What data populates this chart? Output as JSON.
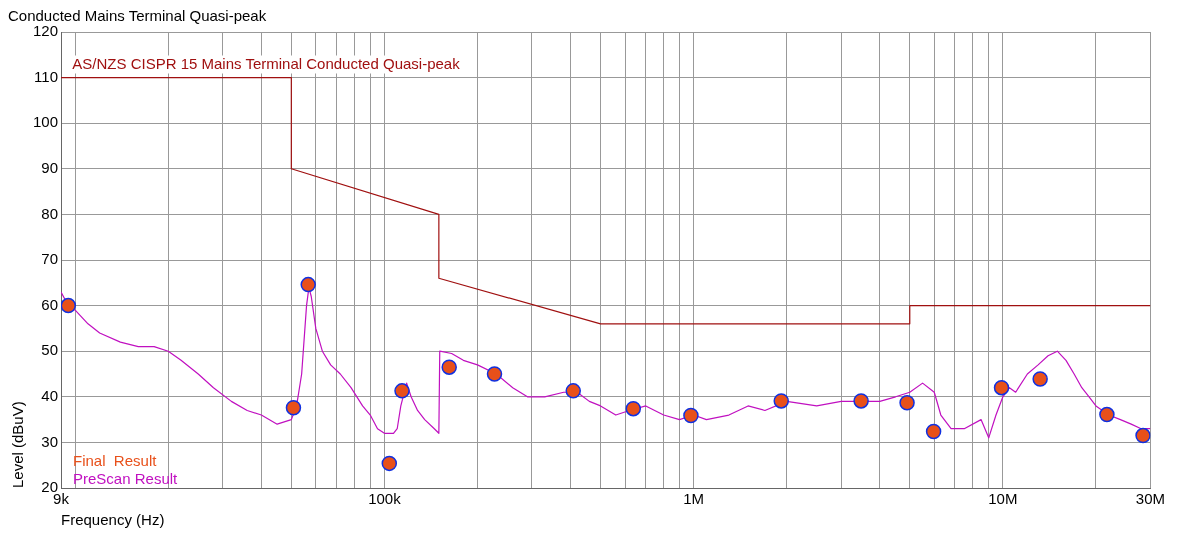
{
  "chart_data": {
    "type": "line",
    "title": "Conducted Mains Terminal Quasi-peak",
    "xlabel": "Frequency (Hz)",
    "ylabel": "Level (dBuV)",
    "log": "x",
    "xlim": [
      9000,
      30000000
    ],
    "ylim": [
      20,
      120
    ],
    "xticks": [
      {
        "value": 9000,
        "label": "9k"
      },
      {
        "value": 10000,
        "label": null
      },
      {
        "value": 20000,
        "label": null
      },
      {
        "value": 30000,
        "label": null
      },
      {
        "value": 40000,
        "label": null
      },
      {
        "value": 50000,
        "label": null
      },
      {
        "value": 60000,
        "label": null
      },
      {
        "value": 70000,
        "label": null
      },
      {
        "value": 80000,
        "label": null
      },
      {
        "value": 90000,
        "label": null
      },
      {
        "value": 100000,
        "label": "100k"
      },
      {
        "value": 200000,
        "label": null
      },
      {
        "value": 300000,
        "label": null
      },
      {
        "value": 400000,
        "label": null
      },
      {
        "value": 500000,
        "label": null
      },
      {
        "value": 600000,
        "label": null
      },
      {
        "value": 700000,
        "label": null
      },
      {
        "value": 800000,
        "label": null
      },
      {
        "value": 900000,
        "label": null
      },
      {
        "value": 1000000,
        "label": "1M"
      },
      {
        "value": 2000000,
        "label": null
      },
      {
        "value": 3000000,
        "label": null
      },
      {
        "value": 4000000,
        "label": null
      },
      {
        "value": 5000000,
        "label": null
      },
      {
        "value": 6000000,
        "label": null
      },
      {
        "value": 7000000,
        "label": null
      },
      {
        "value": 8000000,
        "label": null
      },
      {
        "value": 9000000,
        "label": null
      },
      {
        "value": 10000000,
        "label": "10M"
      },
      {
        "value": 20000000,
        "label": null
      },
      {
        "value": 30000000,
        "label": "30M"
      }
    ],
    "yticks": [
      20,
      30,
      40,
      50,
      60,
      70,
      80,
      90,
      100,
      110,
      120
    ],
    "grid": true,
    "legend": "bottom left",
    "annotations": [
      {
        "text": "AS/NZS CISPR 15 Mains Terminal Conducted Quasi-peak",
        "x": 9500,
        "y": 110
      }
    ],
    "series": [
      {
        "color": "#a01010",
        "marker": "none",
        "x": [
          9000,
          50000,
          50000,
          150000,
          150000,
          500000,
          5000000,
          5000000,
          30000000
        ],
        "values": [
          110,
          110,
          90,
          80,
          66,
          56,
          56,
          60,
          60
        ]
      },
      {
        "name": "PreScan Result",
        "color": "#c010c0",
        "marker": "none",
        "x": [
          9000,
          9500,
          10000,
          11000,
          12000,
          14000,
          16000,
          18000,
          20000,
          22000,
          25000,
          28000,
          32000,
          36000,
          40000,
          45000,
          50000,
          52000,
          54000,
          56000,
          57000,
          58000,
          60000,
          63000,
          67000,
          72000,
          78000,
          85000,
          90000,
          95000,
          100000,
          107000,
          110000,
          113000,
          118000,
          122000,
          128000,
          135000,
          145000,
          150000,
          151000,
          165000,
          180000,
          200000,
          230000,
          260000,
          290000,
          330000,
          380000,
          420000,
          460000,
          500000,
          560000,
          620000,
          700000,
          800000,
          900000,
          1000000,
          1100000,
          1300000,
          1500000,
          1700000,
          2000000,
          2500000,
          3000000,
          3200000,
          4000000,
          4500000,
          5000000,
          5500000,
          6000000,
          6300000,
          6800000,
          7500000,
          8500000,
          9000000,
          9500000,
          10000000,
          10500000,
          11000000,
          12000000,
          13000000,
          14000000,
          15000000,
          16000000,
          17000000,
          18000000,
          19000000,
          20000000,
          22000000,
          24000000,
          26000000,
          28000000,
          30000000
        ],
        "values": [
          63,
          60,
          59,
          56,
          54,
          52,
          51,
          51,
          50,
          48,
          45,
          42,
          39,
          37,
          36,
          34,
          35,
          38,
          45,
          60,
          64,
          62,
          55,
          50,
          47,
          45,
          42,
          38,
          36,
          33,
          32,
          32,
          33,
          38,
          43,
          40,
          37,
          35,
          33,
          32,
          50,
          49.5,
          48,
          47,
          45,
          42,
          40,
          40,
          41,
          41,
          39,
          38,
          36,
          37,
          38,
          36,
          35,
          36,
          35,
          36,
          38,
          37,
          39,
          38,
          39,
          39,
          39,
          40,
          41,
          43,
          41,
          36,
          33,
          33,
          35,
          31,
          36,
          40,
          42,
          41,
          45,
          47,
          49,
          50,
          48,
          45,
          42,
          40,
          38,
          36,
          35,
          34,
          33,
          33
        ]
      },
      {
        "type": "scatter",
        "name": "Final  Result",
        "color": "#e8501a",
        "marker": "circle",
        "x": [
          9500,
          50800,
          56700,
          103700,
          114000,
          162000,
          227000,
          408000,
          638000,
          980000,
          1920000,
          3480000,
          4900000,
          5970000,
          9900000,
          13200000,
          21700000,
          28400000
        ],
        "values": [
          60,
          37.6,
          64.6,
          25.4,
          41.3,
          46.5,
          45,
          41.3,
          37.4,
          35.9,
          39.1,
          39.1,
          38.7,
          32.4,
          42,
          43.9,
          36.1,
          31.5
        ]
      }
    ]
  }
}
